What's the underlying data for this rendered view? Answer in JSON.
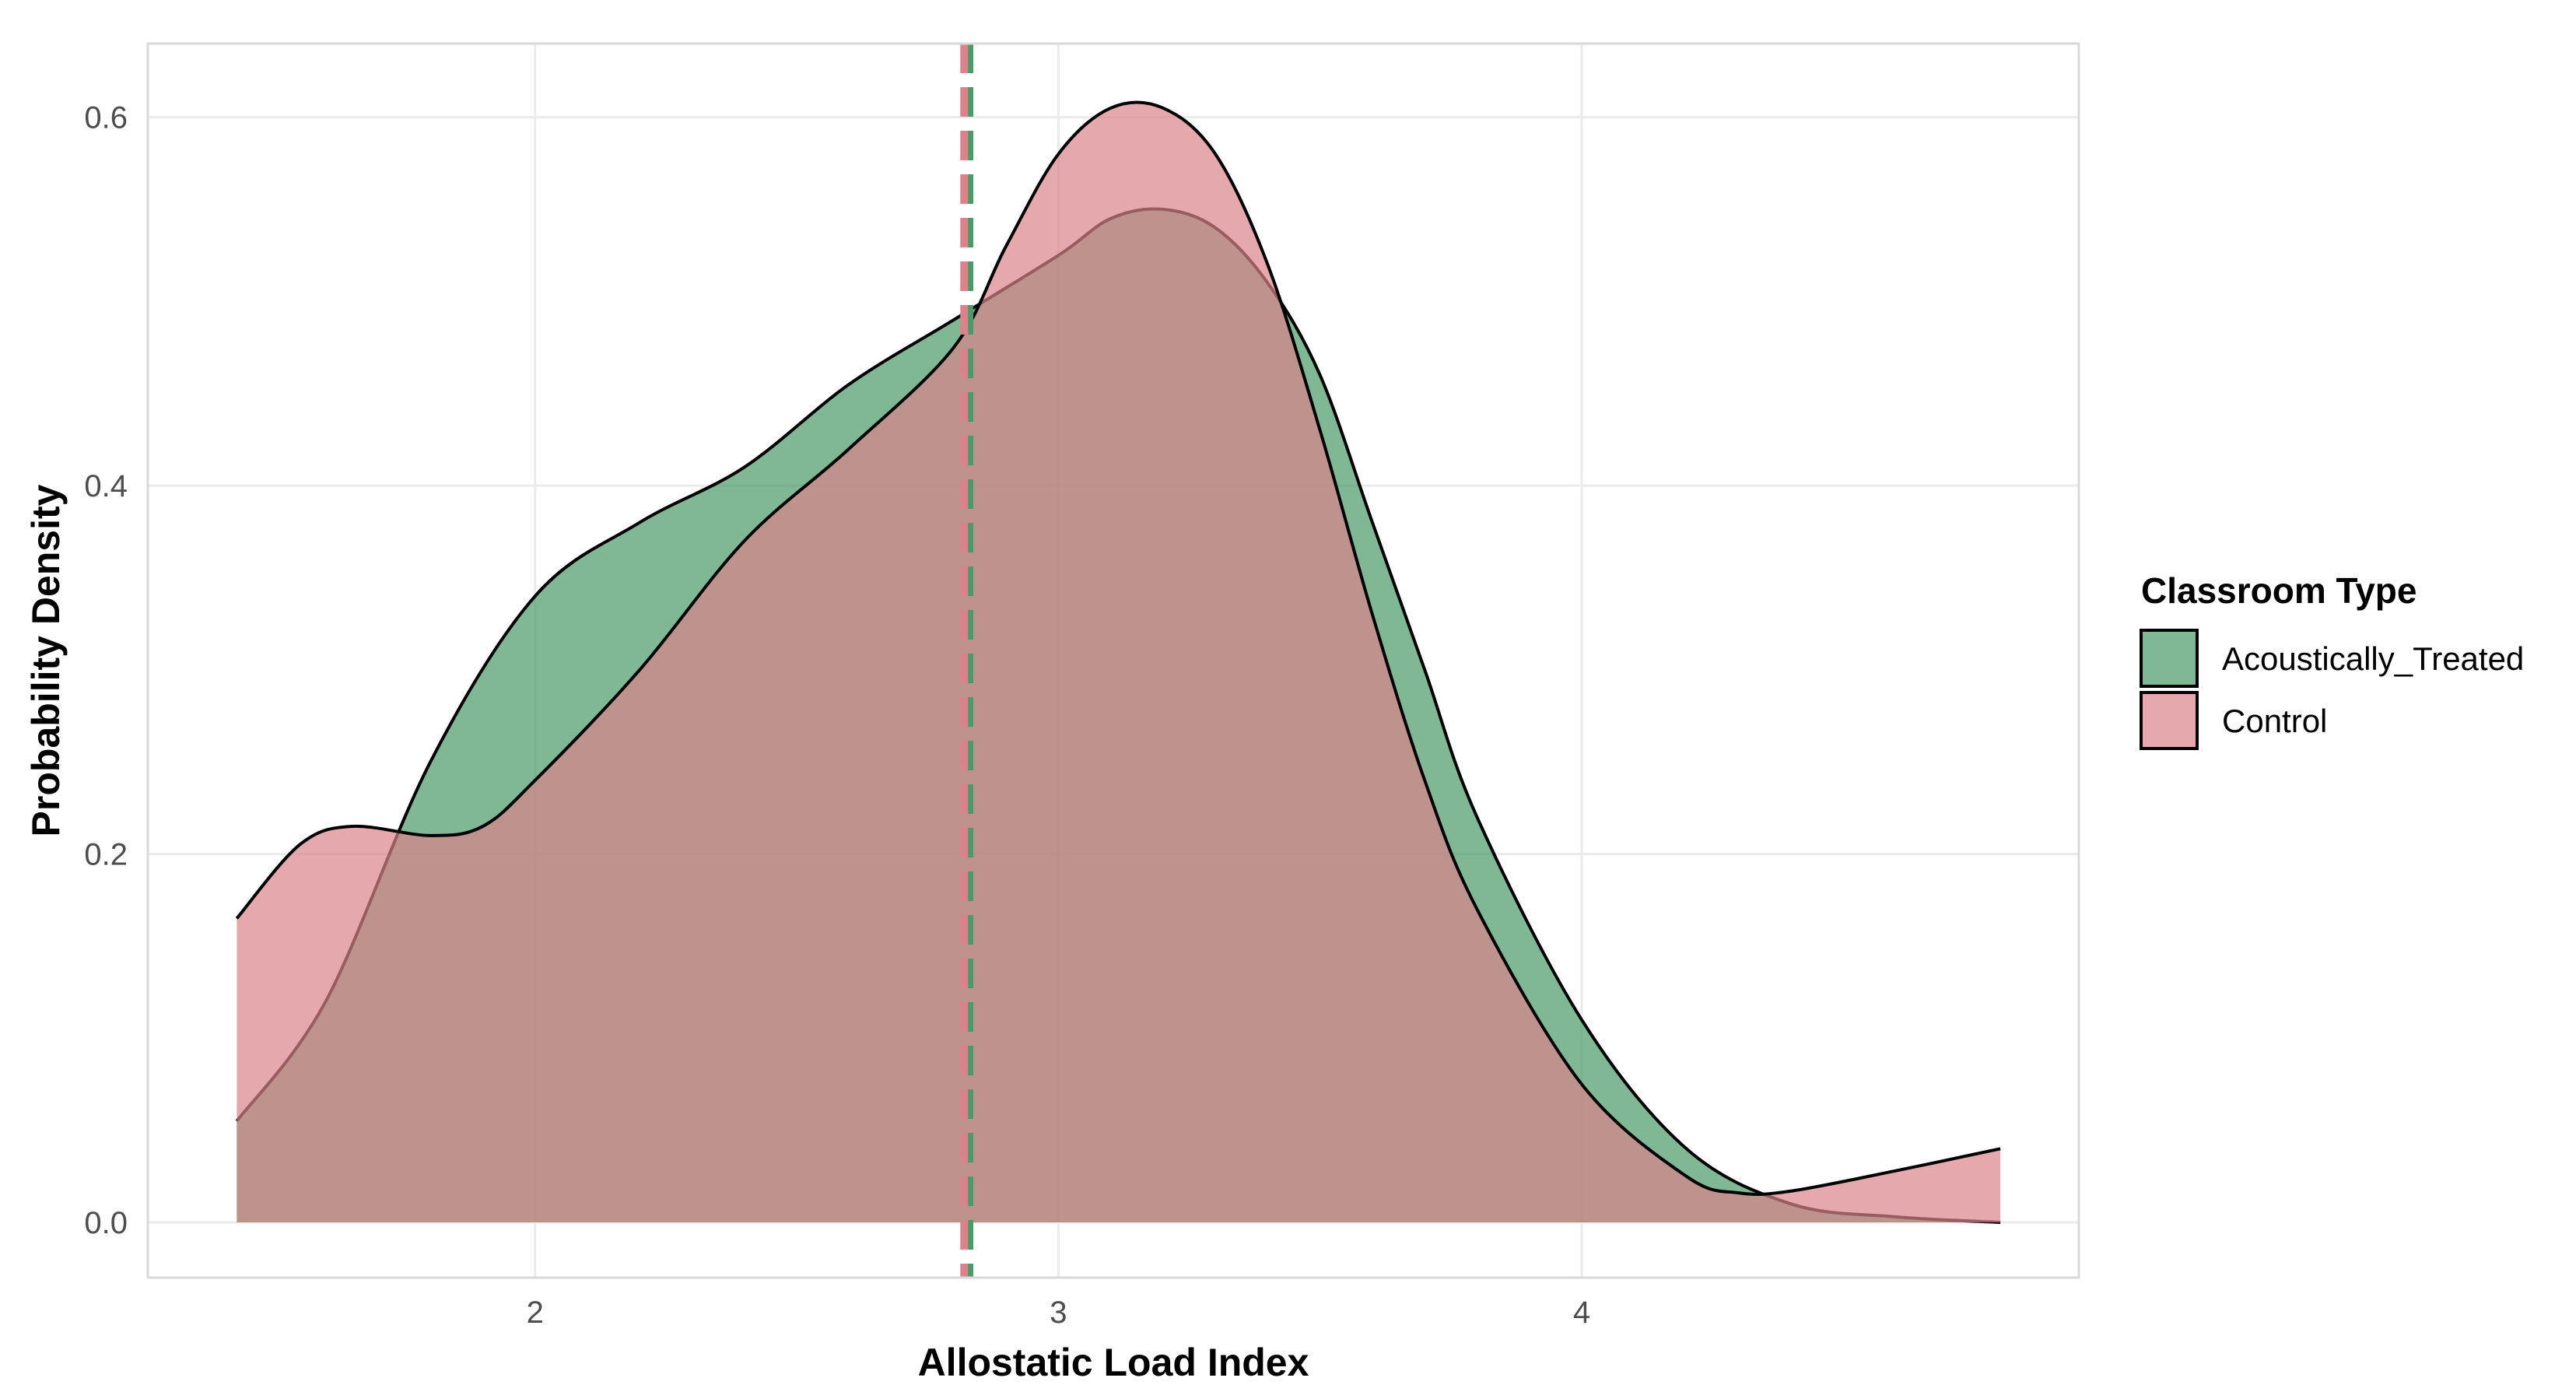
{
  "chart_data": {
    "type": "area",
    "title": "",
    "xlabel": "Allostatic Load Index",
    "ylabel": "Probability Density",
    "xlim": [
      1.26,
      4.95
    ],
    "ylim": [
      -0.03,
      0.64
    ],
    "x_ticks": [
      2,
      3,
      4
    ],
    "y_ticks": [
      0.0,
      0.2,
      0.4,
      0.6
    ],
    "x_tick_labels": [
      "2",
      "3",
      "4"
    ],
    "y_tick_labels": [
      "0.0",
      "0.2",
      "0.4",
      "0.6"
    ],
    "grid": true,
    "legend": {
      "title": "Classroom Type",
      "position": "right"
    },
    "series": [
      {
        "name": "Acoustically_Treated",
        "color": "#4a9a6a",
        "mean": 2.83,
        "x": [
          1.43,
          1.6,
          1.8,
          2.0,
          2.2,
          2.4,
          2.6,
          2.8,
          3.0,
          3.1,
          3.2,
          3.3,
          3.4,
          3.5,
          3.6,
          3.7,
          3.8,
          4.0,
          4.2,
          4.4,
          4.6,
          4.8
        ],
        "y": [
          0.055,
          0.12,
          0.25,
          0.34,
          0.38,
          0.41,
          0.455,
          0.49,
          0.525,
          0.545,
          0.55,
          0.54,
          0.51,
          0.46,
          0.38,
          0.3,
          0.22,
          0.11,
          0.04,
          0.01,
          0.003,
          0.0
        ]
      },
      {
        "name": "Control",
        "color": "#d9838a",
        "mean": 2.82,
        "x": [
          1.43,
          1.55,
          1.65,
          1.8,
          1.9,
          2.0,
          2.2,
          2.4,
          2.6,
          2.8,
          2.9,
          3.0,
          3.1,
          3.2,
          3.3,
          3.4,
          3.5,
          3.6,
          3.7,
          3.8,
          4.0,
          4.2,
          4.3,
          4.4,
          4.6,
          4.8
        ],
        "y": [
          0.165,
          0.205,
          0.215,
          0.21,
          0.215,
          0.24,
          0.3,
          0.37,
          0.42,
          0.475,
          0.53,
          0.58,
          0.605,
          0.605,
          0.58,
          0.52,
          0.43,
          0.33,
          0.24,
          0.17,
          0.075,
          0.025,
          0.016,
          0.017,
          0.028,
          0.04
        ]
      }
    ]
  }
}
